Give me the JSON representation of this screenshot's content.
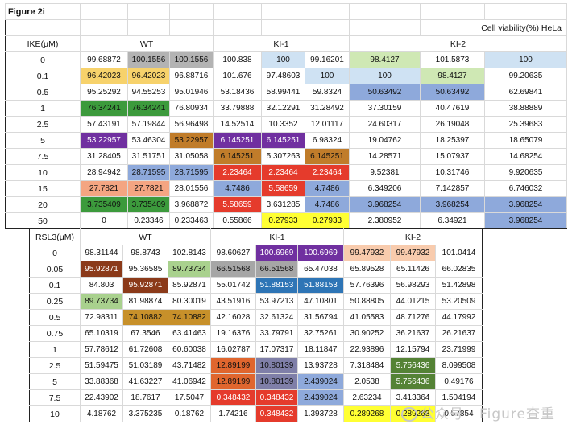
{
  "table1": {
    "figure_title": "Figure 2i",
    "caption": "Cell viability(%) HeLa",
    "row_label": "IKE(μM)",
    "groups": [
      "WT",
      "KI-1",
      "KI-2"
    ],
    "rows": [
      {
        "label": "0",
        "values": [
          "99.68872",
          "100.1556",
          "100.1556",
          "100.838",
          "100",
          "99.16201",
          "98.4127",
          "101.5873",
          "100"
        ]
      },
      {
        "label": "0.1",
        "values": [
          "96.42023",
          "96.42023",
          "96.88716",
          "101.676",
          "97.48603",
          "100",
          "100",
          "98.4127",
          "99.20635"
        ]
      },
      {
        "label": "0.5",
        "values": [
          "95.25292",
          "94.55253",
          "95.01946",
          "53.18436",
          "58.99441",
          "59.8324",
          "50.63492",
          "50.63492",
          "62.69841"
        ]
      },
      {
        "label": "1",
        "values": [
          "76.34241",
          "76.34241",
          "76.80934",
          "33.79888",
          "32.12291",
          "31.28492",
          "37.30159",
          "40.47619",
          "38.88889"
        ]
      },
      {
        "label": "2.5",
        "values": [
          "57.43191",
          "57.19844",
          "56.96498",
          "14.52514",
          "10.3352",
          "12.01117",
          "24.60317",
          "26.19048",
          "25.39683"
        ]
      },
      {
        "label": "5",
        "values": [
          "53.22957",
          "53.46304",
          "53.22957",
          "6.145251",
          "6.145251",
          "6.98324",
          "19.04762",
          "18.25397",
          "18.65079"
        ]
      },
      {
        "label": "7.5",
        "values": [
          "31.28405",
          "31.51751",
          "31.05058",
          "6.145251",
          "5.307263",
          "6.145251",
          "14.28571",
          "15.07937",
          "14.68254"
        ]
      },
      {
        "label": "10",
        "values": [
          "28.94942",
          "28.71595",
          "28.71595",
          "2.23464",
          "2.23464",
          "2.23464",
          "9.52381",
          "10.31746",
          "9.920635"
        ]
      },
      {
        "label": "15",
        "values": [
          "27.7821",
          "27.7821",
          "28.01556",
          "4.7486",
          "5.58659",
          "4.7486",
          "6.349206",
          "7.142857",
          "6.746032"
        ]
      },
      {
        "label": "20",
        "values": [
          "3.735409",
          "3.735409",
          "3.968872",
          "5.58659",
          "3.631285",
          "4.7486",
          "3.968254",
          "3.968254",
          "3.968254"
        ]
      },
      {
        "label": "50",
        "values": [
          "0",
          "0.23346",
          "0.233463",
          "0.55866",
          "0.27933",
          "0.27933",
          "2.380952",
          "6.34921",
          "3.968254"
        ]
      }
    ],
    "colors": [
      [
        "",
        "#b3b3b3",
        "#b3b3b3",
        "",
        "#cfe2f3",
        "",
        "#cfe8b4",
        "",
        "#cfe2f3"
      ],
      [
        "#f7d26b",
        "#f7d26b",
        "",
        "",
        "",
        "#cfe2f3",
        "#cfe2f3",
        "#cfe8b4",
        ""
      ],
      [
        "",
        "",
        "",
        "",
        "",
        "",
        "#8ea9db",
        "#8ea9db",
        ""
      ],
      [
        "#3c9a3c",
        "#3c9a3c",
        "",
        "",
        "",
        "",
        "",
        "",
        ""
      ],
      [
        "",
        "",
        "",
        "",
        "",
        "",
        "",
        "",
        ""
      ],
      [
        "#7030a0",
        "",
        "#c07c2a",
        "#7030a0",
        "#7030a0",
        "",
        "",
        "",
        ""
      ],
      [
        "",
        "",
        "",
        "#c07c2a",
        "",
        "#c07c2a",
        "",
        "",
        ""
      ],
      [
        "",
        "#8ea9db",
        "#8ea9db",
        "#e53b2c",
        "#e53b2c",
        "#e53b2c",
        "",
        "",
        ""
      ],
      [
        "#f4a582",
        "#f4a582",
        "",
        "#8ea9db",
        "#e53b2c",
        "#8ea9db",
        "",
        "",
        ""
      ],
      [
        "#3c9a3c",
        "#3c9a3c",
        "",
        "#e53b2c",
        "",
        "#8ea9db",
        "#8ea9db",
        "#8ea9db",
        "#8ea9db"
      ],
      [
        "",
        "",
        "",
        "",
        "#ffff33",
        "#ffff33",
        "",
        "",
        "#8ea9db"
      ]
    ]
  },
  "table2": {
    "row_label": "RSL3(μM)",
    "groups": [
      "WT",
      "KI-1",
      "KI-2"
    ],
    "rows": [
      {
        "label": "0",
        "values": [
          "98.31144",
          "98.8743",
          "102.8143",
          "98.60627",
          "100.6969",
          "100.6969",
          "99.47932",
          "99.47932",
          "101.0414"
        ]
      },
      {
        "label": "0.05",
        "values": [
          "95.92871",
          "95.36585",
          "89.73734",
          "66.51568",
          "66.51568",
          "65.47038",
          "65.89528",
          "65.11426",
          "66.02835"
        ]
      },
      {
        "label": "0.1",
        "values": [
          "84.803",
          "95.92871",
          "85.92871",
          "55.01742",
          "51.88153",
          "51.88153",
          "57.76396",
          "56.98293",
          "51.42898"
        ]
      },
      {
        "label": "0.25",
        "values": [
          "89.73734",
          "81.98874",
          "80.30019",
          "43.51916",
          "53.97213",
          "47.10801",
          "50.88805",
          "44.01215",
          "53.20509"
        ]
      },
      {
        "label": "0.5",
        "values": [
          "72.98311",
          "74.10882",
          "74.10882",
          "42.16028",
          "32.61324",
          "31.56794",
          "41.05583",
          "48.71276",
          "44.17992"
        ]
      },
      {
        "label": "0.75",
        "values": [
          "65.10319",
          "67.3546",
          "63.41463",
          "19.16376",
          "33.79791",
          "32.75261",
          "30.90252",
          "36.21637",
          "26.21637"
        ]
      },
      {
        "label": "1",
        "values": [
          "57.78612",
          "61.72608",
          "60.60038",
          "16.02787",
          "17.07317",
          "18.11847",
          "22.93896",
          "12.15794",
          "23.71999"
        ]
      },
      {
        "label": "2.5",
        "values": [
          "51.59475",
          "51.03189",
          "43.71482",
          "12.89199",
          "10.80139",
          "13.93728",
          "7.318484",
          "5.756436",
          "8.099508"
        ]
      },
      {
        "label": "5",
        "values": [
          "33.88368",
          "41.63227",
          "41.06942",
          "12.89199",
          "10.80139",
          "2.439024",
          "2.0538",
          "5.756436",
          "0.49176"
        ]
      },
      {
        "label": "7.5",
        "values": [
          "22.43902",
          "18.7617",
          "17.5047",
          "0.348432",
          "0.348432",
          "2.439024",
          "2.63234",
          "3.413364",
          "1.504194"
        ]
      },
      {
        "label": "10",
        "values": [
          "4.18762",
          "3.375235",
          "0.18762",
          "1.74216",
          "0.348432",
          "1.393728",
          "0.289268",
          "0.289268",
          "0.57854"
        ]
      }
    ],
    "colors": [
      [
        "",
        "",
        "",
        "",
        "#7030a0",
        "#7030a0",
        "#f8cbad",
        "#f8cbad",
        ""
      ],
      [
        "#8b3a1a",
        "",
        "#a9d18e",
        "#a6a6a6",
        "#a6a6a6",
        "",
        "",
        "",
        ""
      ],
      [
        "",
        "#8b3a1a",
        "",
        "",
        "#2e75b6",
        "#2e75b6",
        "",
        "",
        ""
      ],
      [
        "#a9d18e",
        "",
        "",
        "",
        "",
        "",
        "",
        "",
        ""
      ],
      [
        "",
        "#c7902a",
        "#c7902a",
        "",
        "",
        "",
        "",
        "",
        ""
      ],
      [
        "",
        "",
        "",
        "",
        "",
        "",
        "",
        "",
        ""
      ],
      [
        "",
        "",
        "",
        "",
        "",
        "",
        "",
        "",
        ""
      ],
      [
        "",
        "",
        "",
        "#e0662e",
        "#7f7fa8",
        "",
        "",
        "#548235",
        ""
      ],
      [
        "",
        "",
        "",
        "#e0662e",
        "#7f7fa8",
        "#8ea9db",
        "",
        "#548235",
        ""
      ],
      [
        "",
        "",
        "",
        "#e53b2c",
        "#e53b2c",
        "#8ea9db",
        "",
        "",
        ""
      ],
      [
        "",
        "",
        "",
        "",
        "#e53b2c",
        "",
        "#ffff33",
        "#ffff33",
        ""
      ]
    ]
  },
  "watermark": "公众号 · Figure查重"
}
